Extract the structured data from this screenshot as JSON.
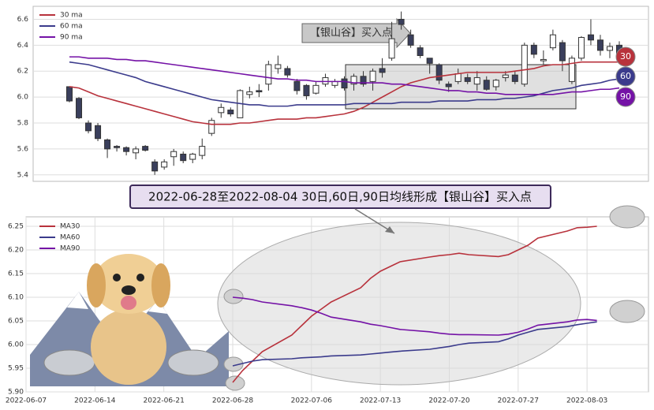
{
  "chart_data": [
    {
      "type": "candlestick",
      "candles": {
        "open": [
          6.08,
          5.99,
          5.8,
          5.78,
          5.67,
          5.62,
          5.61,
          5.57,
          5.62,
          5.5,
          5.46,
          5.54,
          5.56,
          5.52,
          5.55,
          5.72,
          5.88,
          5.9,
          5.84,
          6.02,
          6.05,
          6.1,
          6.22,
          6.22,
          6.12,
          6.09,
          6.03,
          6.1,
          6.09,
          6.14,
          6.1,
          6.16,
          6.12,
          6.22,
          6.3,
          6.6,
          6.48,
          6.38,
          6.3,
          6.25,
          6.1,
          6.12,
          6.15,
          6.1,
          6.13,
          6.08,
          6.15,
          6.17,
          6.1,
          6.4,
          6.28,
          6.38,
          6.42,
          6.12,
          6.3,
          6.48,
          6.44,
          6.36,
          6.4
        ],
        "high": [
          6.08,
          6.0,
          5.82,
          5.8,
          5.68,
          5.63,
          5.62,
          5.62,
          5.63,
          5.52,
          5.52,
          5.6,
          5.58,
          5.57,
          5.68,
          5.84,
          5.95,
          5.92,
          6.06,
          6.08,
          6.1,
          6.28,
          6.32,
          6.24,
          6.14,
          6.1,
          6.12,
          6.18,
          6.14,
          6.16,
          6.18,
          6.2,
          6.22,
          6.3,
          6.58,
          6.66,
          6.52,
          6.4,
          6.3,
          6.26,
          6.12,
          6.22,
          6.18,
          6.2,
          6.16,
          6.14,
          6.2,
          6.2,
          6.42,
          6.42,
          6.36,
          6.52,
          6.44,
          6.32,
          6.47,
          6.6,
          6.48,
          6.42,
          6.43
        ],
        "low": [
          5.96,
          5.83,
          5.72,
          5.66,
          5.53,
          5.58,
          5.55,
          5.52,
          5.58,
          5.4,
          5.44,
          5.47,
          5.49,
          5.49,
          5.52,
          5.7,
          5.84,
          5.85,
          5.84,
          5.99,
          6.0,
          6.05,
          6.18,
          6.15,
          6.02,
          5.98,
          6.02,
          6.08,
          6.07,
          6.05,
          6.05,
          6.08,
          6.05,
          6.15,
          6.28,
          6.52,
          6.38,
          6.3,
          6.18,
          6.1,
          6.04,
          6.1,
          6.1,
          6.05,
          6.05,
          6.05,
          6.12,
          6.1,
          6.08,
          6.3,
          6.25,
          6.36,
          6.2,
          6.1,
          6.28,
          6.4,
          6.32,
          6.3,
          6.28
        ],
        "close": [
          5.97,
          5.84,
          5.74,
          5.68,
          5.6,
          5.61,
          5.58,
          5.6,
          5.59,
          5.43,
          5.5,
          5.58,
          5.51,
          5.56,
          5.62,
          5.82,
          5.92,
          5.87,
          6.05,
          6.04,
          6.04,
          6.25,
          6.25,
          6.17,
          6.05,
          6.01,
          6.09,
          6.15,
          6.12,
          6.07,
          6.16,
          6.1,
          6.2,
          6.19,
          6.45,
          6.56,
          6.4,
          6.32,
          6.26,
          6.13,
          6.08,
          6.18,
          6.12,
          6.15,
          6.06,
          6.13,
          6.17,
          6.12,
          6.4,
          6.33,
          6.29,
          6.48,
          6.28,
          6.3,
          6.46,
          6.44,
          6.36,
          6.39,
          6.32
        ]
      },
      "series": [
        {
          "name": "30 ma",
          "color": "#b8323c",
          "values": [
            6.08,
            6.07,
            6.04,
            6.01,
            5.99,
            5.97,
            5.95,
            5.93,
            5.91,
            5.89,
            5.87,
            5.85,
            5.83,
            5.81,
            5.8,
            5.79,
            5.79,
            5.79,
            5.8,
            5.8,
            5.81,
            5.82,
            5.83,
            5.83,
            5.83,
            5.84,
            5.84,
            5.85,
            5.86,
            5.87,
            5.89,
            5.92,
            5.96,
            6.0,
            6.04,
            6.08,
            6.11,
            6.13,
            6.15,
            6.16,
            6.17,
            6.18,
            6.19,
            6.19,
            6.19,
            6.19,
            6.19,
            6.2,
            6.21,
            6.22,
            6.24,
            6.25,
            6.25,
            6.26,
            6.27,
            6.27,
            6.27,
            6.27,
            6.27
          ]
        },
        {
          "name": "60 ma",
          "color": "#3b3b8c",
          "values": [
            6.27,
            6.26,
            6.25,
            6.23,
            6.21,
            6.19,
            6.17,
            6.15,
            6.12,
            6.1,
            6.08,
            6.06,
            6.04,
            6.02,
            6.0,
            5.98,
            5.97,
            5.96,
            5.95,
            5.94,
            5.94,
            5.93,
            5.93,
            5.93,
            5.94,
            5.94,
            5.94,
            5.94,
            5.94,
            5.94,
            5.95,
            5.95,
            5.95,
            5.95,
            5.95,
            5.96,
            5.96,
            5.96,
            5.96,
            5.97,
            5.97,
            5.97,
            5.97,
            5.98,
            5.98,
            5.98,
            5.99,
            5.99,
            6.0,
            6.01,
            6.03,
            6.05,
            6.06,
            6.07,
            6.09,
            6.1,
            6.11,
            6.13,
            6.14
          ]
        },
        {
          "name": "90 ma",
          "color": "#7412a6",
          "values": [
            6.31,
            6.31,
            6.3,
            6.3,
            6.3,
            6.29,
            6.29,
            6.28,
            6.28,
            6.27,
            6.26,
            6.25,
            6.24,
            6.23,
            6.22,
            6.21,
            6.2,
            6.19,
            6.18,
            6.17,
            6.16,
            6.15,
            6.14,
            6.14,
            6.13,
            6.13,
            6.12,
            6.12,
            6.12,
            6.12,
            6.11,
            6.11,
            6.11,
            6.11,
            6.1,
            6.1,
            6.09,
            6.08,
            6.07,
            6.06,
            6.05,
            6.05,
            6.04,
            6.04,
            6.03,
            6.03,
            6.02,
            6.02,
            6.02,
            6.02,
            6.02,
            6.02,
            6.03,
            6.04,
            6.04,
            6.05,
            6.06,
            6.06,
            6.07
          ]
        }
      ],
      "ylim": [
        5.35,
        6.7
      ],
      "yticks": [
        5.4,
        5.6,
        5.8,
        {
          "value": 6,
          "label": "6.0"
        },
        6.2,
        6.4,
        6.6
      ],
      "up_color": "#ffffff",
      "down_color": "#3a3f5c",
      "annotation": "【银山谷】买入点",
      "markers": [
        "30",
        "60",
        "90"
      ],
      "legend": "upper left"
    },
    {
      "type": "line",
      "title": "2022-06-28至2022-08-04 30日,60日,90日均线形成【银山谷】买入点",
      "x": [
        "2022-06-28",
        "2022-06-29",
        "2022-06-30",
        "2022-07-01",
        "2022-07-04",
        "2022-07-05",
        "2022-07-06",
        "2022-07-07",
        "2022-07-08",
        "2022-07-11",
        "2022-07-12",
        "2022-07-13",
        "2022-07-14",
        "2022-07-15",
        "2022-07-18",
        "2022-07-19",
        "2022-07-20",
        "2022-07-21",
        "2022-07-22",
        "2022-07-25",
        "2022-07-26",
        "2022-07-27",
        "2022-07-28",
        "2022-07-29",
        "2022-08-01",
        "2022-08-02",
        "2022-08-03",
        "2022-08-04"
      ],
      "series": [
        {
          "name": "MA30",
          "color": "#b8323c",
          "values": [
            5.92,
            5.945,
            5.965,
            5.985,
            6.02,
            6.04,
            6.06,
            6.075,
            6.09,
            6.12,
            6.14,
            6.155,
            6.165,
            6.175,
            6.185,
            6.188,
            6.19,
            6.193,
            6.19,
            6.186,
            6.19,
            6.2,
            6.21,
            6.225,
            6.24,
            6.247,
            6.248,
            6.25
          ]
        },
        {
          "name": "MA60",
          "color": "#3b3b8c",
          "values": [
            5.955,
            5.96,
            5.965,
            5.968,
            5.97,
            5.972,
            5.973,
            5.974,
            5.976,
            5.978,
            5.98,
            5.982,
            5.984,
            5.986,
            5.99,
            5.993,
            5.996,
            6.0,
            6.003,
            6.006,
            6.012,
            6.02,
            6.026,
            6.032,
            6.038,
            6.042,
            6.045,
            6.048
          ]
        },
        {
          "name": "MA90",
          "color": "#7412a6",
          "values": [
            6.1,
            6.098,
            6.095,
            6.09,
            6.082,
            6.078,
            6.073,
            6.066,
            6.058,
            6.048,
            6.043,
            6.04,
            6.036,
            6.032,
            6.027,
            6.024,
            6.022,
            6.021,
            6.021,
            6.02,
            6.022,
            6.026,
            6.033,
            6.041,
            6.048,
            6.052,
            6.053,
            6.051
          ]
        }
      ],
      "xlim": [
        "2022-06-07",
        "2022-08-09"
      ],
      "xticks": [
        "2022-06-07",
        "2022-06-14",
        "2022-06-21",
        "2022-06-28",
        "2022-07-06",
        "2022-07-13",
        "2022-07-20",
        "2022-07-27",
        "2022-08-03"
      ],
      "ylim": [
        5.9,
        6.27
      ],
      "yticks": [
        {
          "value": 5.9,
          "label": "5.90"
        },
        5.95,
        {
          "value": 6,
          "label": "6.00"
        },
        6.05,
        {
          "value": 6.1,
          "label": "6.10"
        },
        6.15,
        {
          "value": 6.2,
          "label": "6.20"
        },
        6.25
      ],
      "grid": true,
      "legend": "upper left"
    }
  ]
}
